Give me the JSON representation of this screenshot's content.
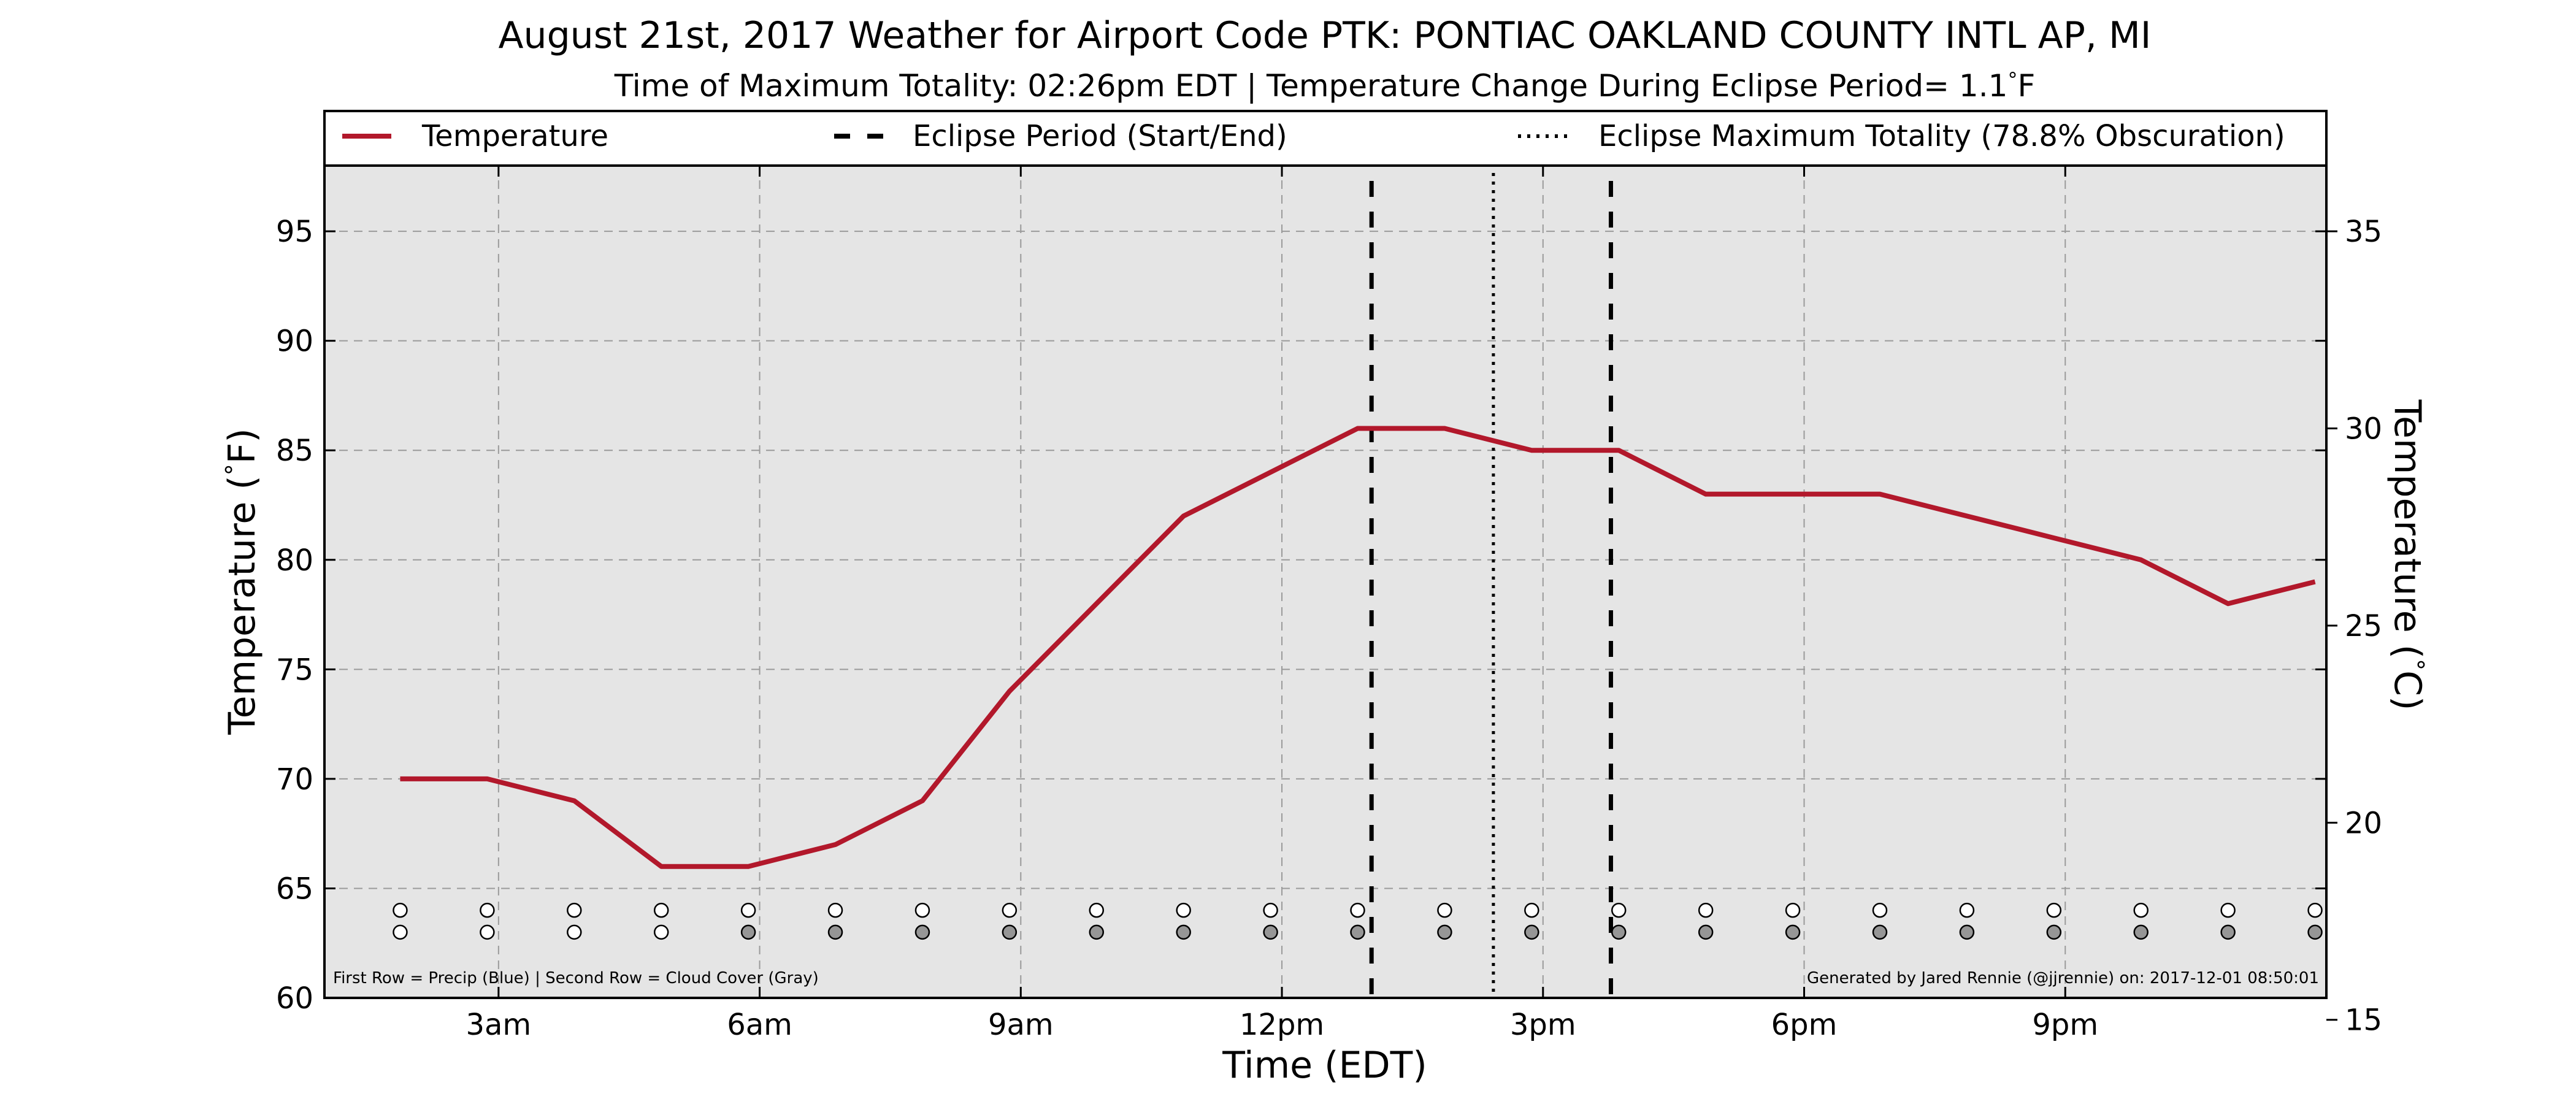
{
  "chart_data": {
    "type": "line",
    "title": "August 21st, 2017 Weather for Airport Code PTK: PONTIAC OAKLAND COUNTY INTL AP, MI",
    "subtitle": "Time of Maximum Totality: 02:26pm EDT | Temperature Change During Eclipse Period= 1.1",
    "subtitle_unit": "F",
    "xlabel": "Time (EDT)",
    "ylabel_left": "Temperature (",
    "ylabel_right": "Temperature (",
    "ylabel_left_unit": "F)",
    "ylabel_right_unit": "C)",
    "degree_symbol": "°",
    "xlim_hours": [
      1.0,
      24.0
    ],
    "ylim": [
      60,
      98
    ],
    "ylim_right_celsius": [
      15.556,
      36.667
    ],
    "x_ticks": [
      {
        "hour": 3,
        "label": "3am"
      },
      {
        "hour": 6,
        "label": "6am"
      },
      {
        "hour": 9,
        "label": "9am"
      },
      {
        "hour": 12,
        "label": "12pm"
      },
      {
        "hour": 15,
        "label": "3pm"
      },
      {
        "hour": 18,
        "label": "6pm"
      },
      {
        "hour": 21,
        "label": "9pm"
      }
    ],
    "y_ticks": [
      60,
      65,
      70,
      75,
      80,
      85,
      90,
      95
    ],
    "y_ticks_right": [
      15,
      20,
      25,
      30,
      35
    ],
    "grid": true,
    "legend_placement": "top",
    "series": [
      {
        "name": "Temperature",
        "color": "#b2182b",
        "x_hours": [
          1.87,
          2.87,
          3.87,
          4.87,
          5.87,
          6.87,
          7.87,
          8.87,
          9.87,
          10.87,
          11.87,
          12.87,
          13.87,
          14.87,
          15.87,
          16.87,
          17.87,
          18.87,
          19.87,
          20.87,
          21.87,
          22.87,
          23.87
        ],
        "values": [
          70,
          70,
          69,
          66,
          66,
          67,
          69,
          74,
          78,
          82,
          84,
          86,
          86,
          85,
          85,
          83,
          83,
          83,
          82,
          81,
          80,
          78,
          79
        ]
      }
    ],
    "eclipse_start_hour": 13.03,
    "eclipse_end_hour": 15.78,
    "eclipse_max_hour": 14.43,
    "legend": {
      "temperature": "Temperature",
      "eclipse_period": "Eclipse Period (Start/End)",
      "eclipse_max": "Eclipse Maximum Totality (78.8% Obscuration)"
    },
    "markers": {
      "x_hours": [
        1.87,
        2.87,
        3.87,
        4.87,
        5.87,
        6.87,
        7.87,
        8.87,
        9.87,
        10.87,
        11.87,
        12.87,
        13.87,
        14.87,
        15.87,
        16.87,
        17.87,
        18.87,
        19.87,
        20.87,
        21.87,
        22.87,
        23.87
      ],
      "precip_y": 64,
      "cloud_y": 63,
      "precip_colors": [
        "#ffffff",
        "#ffffff",
        "#ffffff",
        "#ffffff",
        "#ffffff",
        "#ffffff",
        "#ffffff",
        "#ffffff",
        "#ffffff",
        "#ffffff",
        "#ffffff",
        "#ffffff",
        "#ffffff",
        "#ffffff",
        "#ffffff",
        "#ffffff",
        "#ffffff",
        "#ffffff",
        "#ffffff",
        "#ffffff",
        "#ffffff",
        "#ffffff",
        "#ffffff"
      ],
      "cloud_colors": [
        "#ffffff",
        "#ffffff",
        "#ffffff",
        "#ffffff",
        "#969696",
        "#969696",
        "#969696",
        "#969696",
        "#969696",
        "#969696",
        "#969696",
        "#969696",
        "#969696",
        "#969696",
        "#969696",
        "#969696",
        "#969696",
        "#969696",
        "#969696",
        "#969696",
        "#969696",
        "#969696",
        "#969696"
      ]
    },
    "footnote_left": "First Row = Precip (Blue) | Second Row = Cloud Cover (Gray)",
    "footnote_right": "Generated by Jared Rennie (@jjrennie) on: 2017-12-01 08:50:01",
    "plot_background": "#e5e5e5"
  }
}
